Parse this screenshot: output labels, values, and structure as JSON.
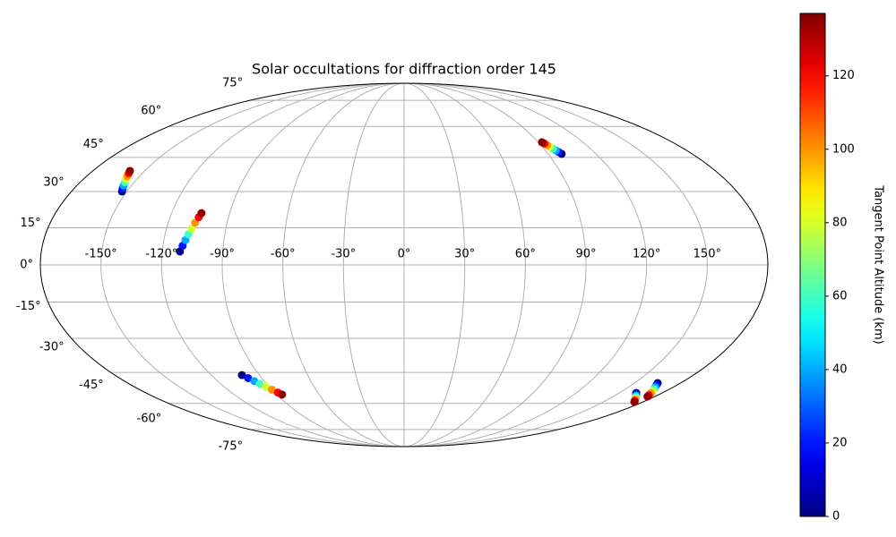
{
  "chart_data": {
    "type": "scatter",
    "projection": "mollweide",
    "title": "Solar occultations for diffraction order 145",
    "x": [
      -152.6,
      -153.5,
      -154.3,
      -155.2,
      -156.1,
      -157.0,
      -157.8,
      -158.5,
      -111.2,
      -110.2,
      -109.2,
      -108.3,
      -107.3,
      -106.3,
      -105.3,
      -104.6,
      -100.9,
      -98.7,
      -96.5,
      -94.4,
      -92.2,
      -90.0,
      -87.8,
      -86.2,
      98.5,
      97.6,
      96.7,
      95.8,
      94.9,
      94.1,
      93.2,
      92.5,
      161.9,
      163.6,
      165.3,
      167.0,
      168.7,
      170.4,
      172.1,
      173.4,
      165.1,
      166.5,
      168.0,
      169.4,
      170.9,
      172.3,
      173.7,
      174.8
    ],
    "y": [
      30.0,
      31.3,
      32.6,
      34.0,
      35.3,
      36.6,
      37.9,
      38.9,
      5.4,
      7.7,
      10.0,
      12.3,
      14.6,
      17.0,
      19.3,
      21.0,
      -46.2,
      -47.6,
      -49.0,
      -50.3,
      -51.7,
      -53.1,
      -54.5,
      -55.5,
      46.6,
      47.4,
      48.2,
      49.0,
      49.9,
      50.7,
      51.5,
      52.1,
      -54.7,
      -55.4,
      -56.0,
      -56.7,
      -57.4,
      -58.0,
      -58.7,
      -59.2,
      -49.9,
      -50.9,
      -51.9,
      -52.8,
      -53.8,
      -54.8,
      -55.8,
      -56.5
    ],
    "c": [
      0,
      20,
      40,
      60,
      80,
      100,
      120,
      135,
      0,
      20,
      40,
      60,
      80,
      100,
      120,
      135,
      0,
      20,
      40,
      60,
      80,
      100,
      120,
      135,
      0,
      20,
      40,
      60,
      80,
      100,
      120,
      135,
      0,
      20,
      40,
      60,
      80,
      100,
      120,
      135,
      0,
      20,
      40,
      60,
      80,
      100,
      120,
      135
    ],
    "xlim": [
      -180,
      180
    ],
    "ylim": [
      -90,
      90
    ],
    "xticks": [
      {
        "value": -150,
        "label": "-150°"
      },
      {
        "value": -120,
        "label": "-120°"
      },
      {
        "value": -90,
        "label": "-90°"
      },
      {
        "value": -60,
        "label": "-60°"
      },
      {
        "value": -30,
        "label": "-30°"
      },
      {
        "value": 0,
        "label": "0°"
      },
      {
        "value": 30,
        "label": "30°"
      },
      {
        "value": 60,
        "label": "60°"
      },
      {
        "value": 90,
        "label": "90°"
      },
      {
        "value": 120,
        "label": "120°"
      },
      {
        "value": 150,
        "label": "150°"
      }
    ],
    "yticks": [
      {
        "value": -75,
        "label": "-75°"
      },
      {
        "value": -60,
        "label": "-60°"
      },
      {
        "value": -45,
        "label": "-45°"
      },
      {
        "value": -30,
        "label": "-30°"
      },
      {
        "value": -15,
        "label": "-15°"
      },
      {
        "value": 0,
        "label": "0°"
      },
      {
        "value": 15,
        "label": "15°"
      },
      {
        "value": 30,
        "label": "30°"
      },
      {
        "value": 45,
        "label": "45°"
      },
      {
        "value": 60,
        "label": "60°"
      },
      {
        "value": 75,
        "label": "75°"
      }
    ],
    "grid": true,
    "cmap": "jet",
    "clim": [
      0,
      137
    ],
    "colorbar_ticks": [
      0,
      20,
      40,
      60,
      80,
      100,
      120
    ],
    "colorbar_label": "Tangent Point Altitude (km)"
  }
}
